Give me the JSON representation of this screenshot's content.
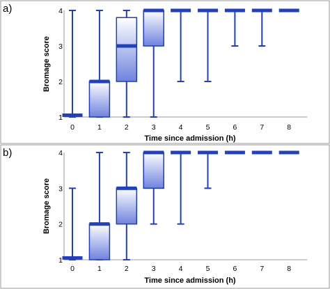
{
  "colors": {
    "series": "#1f3fc4",
    "box_fill_light": "#ffffff",
    "box_fill_dark": "#6f82de",
    "frame": "#9a9a9a",
    "background": "#ffffff"
  },
  "chart_data": [
    {
      "type": "box",
      "panel_label": "a)",
      "xlabel": "Time since admission (h)",
      "ylabel": "Bromage score",
      "ylim": [
        1,
        4
      ],
      "yticks": [
        "1",
        "2",
        "3",
        "4"
      ],
      "categories": [
        "0",
        "1",
        "2",
        "3",
        "4",
        "5",
        "6",
        "7",
        "8"
      ],
      "boxes": [
        {
          "x": "0",
          "min": 1,
          "q1": 1,
          "median": 1.05,
          "q3": 1.05,
          "max": 4
        },
        {
          "x": "1",
          "min": 1,
          "q1": 1,
          "median": 2,
          "q3": 2,
          "max": 4
        },
        {
          "x": "2",
          "min": 1,
          "q1": 2,
          "median": 3,
          "q3": 3.8,
          "max": 4
        },
        {
          "x": "3",
          "min": 1,
          "q1": 3,
          "median": 4,
          "q3": 4,
          "max": 4
        },
        {
          "x": "4",
          "min": 2,
          "q1": 4,
          "median": 4,
          "q3": 4,
          "max": 4
        },
        {
          "x": "5",
          "min": 2,
          "q1": 4,
          "median": 4,
          "q3": 4,
          "max": 4
        },
        {
          "x": "6",
          "min": 3,
          "q1": 4,
          "median": 4,
          "q3": 4,
          "max": 4
        },
        {
          "x": "7",
          "min": 3,
          "q1": 4,
          "median": 4,
          "q3": 4,
          "max": 4
        },
        {
          "x": "8",
          "min": 4,
          "q1": 4,
          "median": 4,
          "q3": 4,
          "max": 4
        }
      ]
    },
    {
      "type": "box",
      "panel_label": "b)",
      "xlabel": "Time since admission (h)",
      "ylabel": "Bromage score",
      "ylim": [
        1,
        4
      ],
      "yticks": [
        "1",
        "2",
        "3",
        "4"
      ],
      "categories": [
        "0",
        "1",
        "2",
        "3",
        "4",
        "5",
        "6",
        "7",
        "8"
      ],
      "boxes": [
        {
          "x": "0",
          "min": 1,
          "q1": 1,
          "median": 1.05,
          "q3": 1.05,
          "max": 3
        },
        {
          "x": "1",
          "min": 1,
          "q1": 1,
          "median": 2,
          "q3": 2,
          "max": 4
        },
        {
          "x": "2",
          "min": 1,
          "q1": 2,
          "median": 3,
          "q3": 3,
          "max": 4
        },
        {
          "x": "3",
          "min": 2,
          "q1": 3,
          "median": 4,
          "q3": 4,
          "max": 4
        },
        {
          "x": "4",
          "min": 2,
          "q1": 4,
          "median": 4,
          "q3": 4,
          "max": 4
        },
        {
          "x": "5",
          "min": 3,
          "q1": 4,
          "median": 4,
          "q3": 4,
          "max": 4
        },
        {
          "x": "6",
          "min": 4,
          "q1": 4,
          "median": 4,
          "q3": 4,
          "max": 4
        },
        {
          "x": "7",
          "min": 4,
          "q1": 4,
          "median": 4,
          "q3": 4,
          "max": 4
        },
        {
          "x": "8",
          "min": 4,
          "q1": 4,
          "median": 4,
          "q3": 4,
          "max": 4
        }
      ]
    }
  ]
}
